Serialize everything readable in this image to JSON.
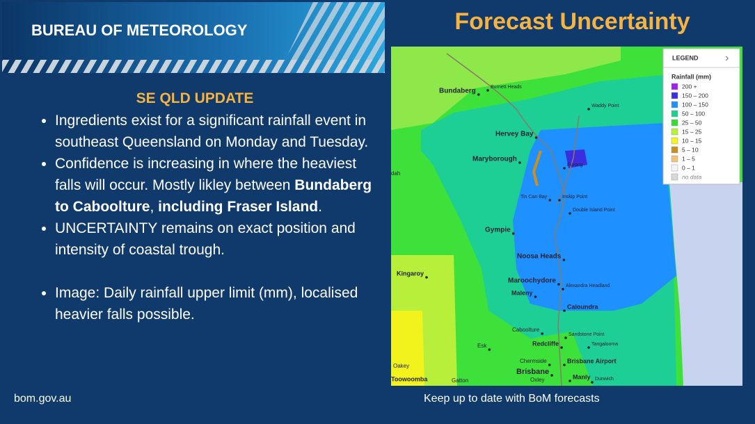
{
  "header": {
    "org": "BUREAU OF METEOROLOGY"
  },
  "title": "Forecast Uncertainty",
  "update": {
    "heading": "SE QLD UPDATE",
    "bullets": [
      [
        {
          "text": "Ingredients exist for a significant rainfall event in southeast Queensland on Monday and Tuesday.",
          "bold": false
        }
      ],
      [
        {
          "text": "Confidence is increasing in where the heaviest falls will occur. Mostly likley between ",
          "bold": false
        },
        {
          "text": "Bundaberg to Caboolture",
          "bold": true
        },
        {
          "text": ", ",
          "bold": false
        },
        {
          "text": "including Fraser Island",
          "bold": true
        },
        {
          "text": ".",
          "bold": false
        }
      ],
      [
        {
          "text": "UNCERTAINTY remains on exact position and intensity of coastal trough.",
          "bold": false
        }
      ],
      [
        {
          "text": "Image: Daily rainfall upper limit (mm), localised heavier falls possible.",
          "bold": false
        }
      ]
    ]
  },
  "map": {
    "legend": {
      "title": "LEGEND",
      "subtitle": "Rainfall (mm)",
      "items": [
        {
          "label": "200 +",
          "color": "#a020f0"
        },
        {
          "label": "150 – 200",
          "color": "#3b2ee0"
        },
        {
          "label": "100 – 150",
          "color": "#1e90ff"
        },
        {
          "label": "50 – 100",
          "color": "#1ecf95"
        },
        {
          "label": "25 – 50",
          "color": "#33dd33"
        },
        {
          "label": "15 – 25",
          "color": "#b8f03c"
        },
        {
          "label": "10 – 15",
          "color": "#f5f51e"
        },
        {
          "label": "5 – 10",
          "color": "#c8901e"
        },
        {
          "label": "1 – 5",
          "color": "#f5c07a"
        },
        {
          "label": "0 – 1",
          "color": "#f5f5f5"
        },
        {
          "label": "no data",
          "color": "#d8d8d8"
        }
      ]
    },
    "places": [
      "Bundaberg",
      "Burnett Heads",
      "Waddy Point",
      "Hervey Bay",
      "Maryborough",
      "Eurong",
      "Tin Can Bay",
      "Inskip Point",
      "Double Island Point",
      "Gympie",
      "Noosa Heads",
      "Kingaroy",
      "Maroochydore",
      "Alexandra Headland",
      "Maleny",
      "Caloundra",
      "Caboolture",
      "Sandstone Point",
      "Redcliffe",
      "Tangalooma",
      "Esk",
      "Chermside",
      "Brisbane Airport",
      "Oakey",
      "Brisbane",
      "Toowoomba",
      "Gatton",
      "Oxley",
      "Manly",
      "Dunwich",
      "dah"
    ]
  },
  "footer": {
    "left": "bom.gov.au",
    "right": "Keep up to date with BoM forecasts"
  }
}
